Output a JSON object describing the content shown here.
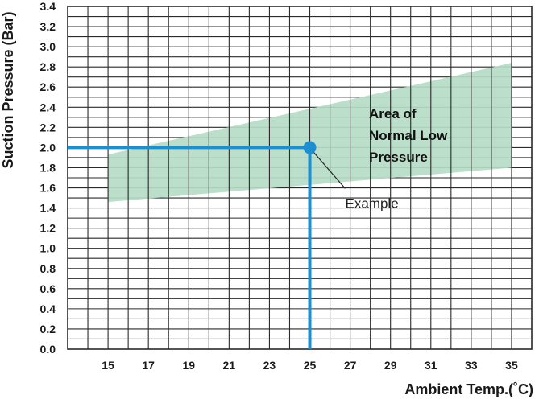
{
  "chart_data": {
    "type": "line",
    "xlabel": "Ambient Temp.(˚C)",
    "ylabel": "Suction Pressure (Bar)",
    "xlim": [
      13,
      36
    ],
    "ylim": [
      0,
      3.4
    ],
    "x_ticks": [
      "15",
      "17",
      "19",
      "21",
      "23",
      "25",
      "27",
      "29",
      "31",
      "33",
      "35"
    ],
    "y_ticks": [
      "0.0",
      "0.2",
      "0.4",
      "0.6",
      "0.8",
      "1.0",
      "1.2",
      "1.4",
      "1.6",
      "1.8",
      "2.0",
      "2.2",
      "2.4",
      "2.6",
      "2.8",
      "3.0",
      "3.2",
      "3.4"
    ],
    "grid": true,
    "normal_region": {
      "label_lines": [
        "Area of",
        "Normal Low",
        "Pressure"
      ],
      "x": [
        15,
        35
      ],
      "lower": [
        1.46,
        1.8
      ],
      "upper": [
        1.93,
        2.84
      ],
      "color": "#b5dcc6"
    },
    "example": {
      "label": "Example",
      "x": 25,
      "y": 2.0,
      "color": "#1b8fd0"
    }
  }
}
